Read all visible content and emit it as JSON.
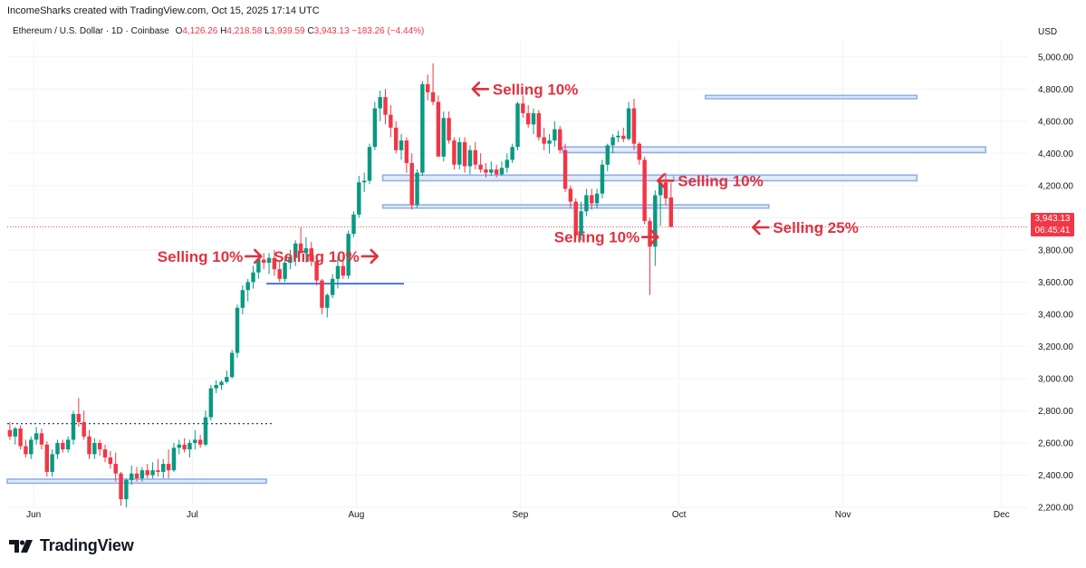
{
  "header": {
    "credit": "IncomeSharks created with TradingView.com, Oct 15, 2025 17:14 UTC",
    "symbol": "Ethereum / U.S. Dollar · 1D · Coinbase",
    "open_label": "O",
    "open": "4,126.26",
    "high_label": "H",
    "high": "4,218.58",
    "low_label": "L",
    "low": "3,939.59",
    "close_label": "C",
    "close": "3,943.13",
    "change": "−183.26 (−4.44%)",
    "currency": "USD"
  },
  "price_tag": {
    "price": "3,943.13",
    "countdown": "06:45:41"
  },
  "brand": {
    "name": "TradingView",
    "icon": "tradingview-logo-icon"
  },
  "colors": {
    "up": "#089981",
    "down": "#f23645",
    "annotation": "#e0323f",
    "zone": "#8fb0e8",
    "support": "#1e4fc4",
    "dotted": "#1e3fa8"
  },
  "chart_data": {
    "type": "candlestick",
    "title": "",
    "xlabel": "",
    "ylabel": "",
    "ylim": [
      2200,
      5100
    ],
    "xlim": [
      "2025-05-27",
      "2025-12-06"
    ],
    "grid": true,
    "y_ticks": [
      2200,
      2400,
      2600,
      2800,
      3000,
      3200,
      3400,
      3600,
      3800,
      4000,
      4200,
      4400,
      4600,
      4800,
      5000
    ],
    "y_tick_labels": [
      "2,200.00",
      "2,400.00",
      "2,600.00",
      "2,800.00",
      "3,000.00",
      "3,200.00",
      "3,400.00",
      "3,600.00",
      "3,800.00",
      "4,000.00",
      "4,200.00",
      "4,400.00",
      "4,600.00",
      "4,800.00",
      "5,000.00"
    ],
    "x_ticks": [
      {
        "date": "2025-06-01",
        "label": "Jun"
      },
      {
        "date": "2025-07-01",
        "label": "Jul"
      },
      {
        "date": "2025-08-01",
        "label": "Aug"
      },
      {
        "date": "2025-09-01",
        "label": "Sep"
      },
      {
        "date": "2025-10-01",
        "label": "Oct"
      },
      {
        "date": "2025-11-01",
        "label": "Nov"
      },
      {
        "date": "2025-12-01",
        "label": "Dec"
      }
    ],
    "start_date": "2025-05-27",
    "candles": [
      [
        2680,
        2730,
        2620,
        2640
      ],
      [
        2640,
        2700,
        2590,
        2690
      ],
      [
        2690,
        2710,
        2560,
        2580
      ],
      [
        2580,
        2620,
        2510,
        2530
      ],
      [
        2530,
        2640,
        2500,
        2620
      ],
      [
        2620,
        2700,
        2590,
        2660
      ],
      [
        2660,
        2690,
        2560,
        2590
      ],
      [
        2590,
        2610,
        2390,
        2420
      ],
      [
        2420,
        2560,
        2390,
        2530
      ],
      [
        2530,
        2620,
        2500,
        2600
      ],
      [
        2600,
        2620,
        2540,
        2560
      ],
      [
        2560,
        2640,
        2540,
        2620
      ],
      [
        2620,
        2800,
        2590,
        2780
      ],
      [
        2780,
        2880,
        2700,
        2730
      ],
      [
        2730,
        2800,
        2620,
        2640
      ],
      [
        2640,
        2680,
        2500,
        2530
      ],
      [
        2530,
        2630,
        2500,
        2600
      ],
      [
        2600,
        2620,
        2520,
        2560
      ],
      [
        2560,
        2590,
        2480,
        2510
      ],
      [
        2510,
        2550,
        2440,
        2470
      ],
      [
        2470,
        2540,
        2360,
        2410
      ],
      [
        2410,
        2420,
        2210,
        2250
      ],
      [
        2250,
        2380,
        2200,
        2370
      ],
      [
        2370,
        2460,
        2340,
        2410
      ],
      [
        2410,
        2450,
        2360,
        2380
      ],
      [
        2380,
        2450,
        2360,
        2430
      ],
      [
        2430,
        2470,
        2380,
        2400
      ],
      [
        2400,
        2480,
        2380,
        2430
      ],
      [
        2430,
        2500,
        2390,
        2420
      ],
      [
        2420,
        2500,
        2380,
        2470
      ],
      [
        2470,
        2560,
        2380,
        2430
      ],
      [
        2430,
        2600,
        2420,
        2570
      ],
      [
        2570,
        2620,
        2530,
        2590
      ],
      [
        2590,
        2630,
        2540,
        2560
      ],
      [
        2560,
        2620,
        2510,
        2600
      ],
      [
        2600,
        2680,
        2560,
        2620
      ],
      [
        2620,
        2650,
        2570,
        2590
      ],
      [
        2590,
        2800,
        2580,
        2760
      ],
      [
        2760,
        2960,
        2740,
        2940
      ],
      [
        2940,
        2990,
        2910,
        2960
      ],
      [
        2960,
        2990,
        2930,
        2980
      ],
      [
        2980,
        3050,
        2970,
        3010
      ],
      [
        3010,
        3180,
        3000,
        3160
      ],
      [
        3160,
        3460,
        3130,
        3440
      ],
      [
        3440,
        3580,
        3400,
        3550
      ],
      [
        3550,
        3620,
        3480,
        3600
      ],
      [
        3600,
        3700,
        3560,
        3660
      ],
      [
        3660,
        3770,
        3620,
        3740
      ],
      [
        3740,
        3780,
        3680,
        3720
      ],
      [
        3720,
        3780,
        3650,
        3750
      ],
      [
        3750,
        3800,
        3640,
        3680
      ],
      [
        3680,
        3730,
        3600,
        3620
      ],
      [
        3620,
        3760,
        3600,
        3720
      ],
      [
        3720,
        3800,
        3680,
        3750
      ],
      [
        3750,
        3860,
        3700,
        3840
      ],
      [
        3840,
        3940,
        3780,
        3780
      ],
      [
        3780,
        3880,
        3720,
        3810
      ],
      [
        3810,
        3850,
        3700,
        3730
      ],
      [
        3730,
        3760,
        3580,
        3610
      ],
      [
        3610,
        3620,
        3400,
        3440
      ],
      [
        3440,
        3530,
        3380,
        3520
      ],
      [
        3520,
        3650,
        3500,
        3620
      ],
      [
        3620,
        3760,
        3560,
        3700
      ],
      [
        3700,
        3780,
        3620,
        3640
      ],
      [
        3640,
        3920,
        3620,
        3900
      ],
      [
        3900,
        4040,
        3880,
        4020
      ],
      [
        4020,
        4260,
        4000,
        4220
      ],
      [
        4220,
        4280,
        4160,
        4230
      ],
      [
        4230,
        4460,
        4210,
        4440
      ],
      [
        4440,
        4720,
        4420,
        4680
      ],
      [
        4680,
        4790,
        4600,
        4750
      ],
      [
        4750,
        4800,
        4580,
        4640
      ],
      [
        4640,
        4700,
        4500,
        4560
      ],
      [
        4560,
        4600,
        4400,
        4420
      ],
      [
        4420,
        4520,
        4360,
        4480
      ],
      [
        4480,
        4500,
        4280,
        4340
      ],
      [
        4340,
        4400,
        4050,
        4080
      ],
      [
        4080,
        4300,
        4060,
        4280
      ],
      [
        4280,
        4850,
        4260,
        4830
      ],
      [
        4830,
        4890,
        4730,
        4780
      ],
      [
        4780,
        4960,
        4700,
        4720
      ],
      [
        4720,
        4760,
        4400,
        4380
      ],
      [
        4380,
        4660,
        4350,
        4620
      ],
      [
        4620,
        4660,
        4460,
        4480
      ],
      [
        4480,
        4500,
        4300,
        4330
      ],
      [
        4330,
        4500,
        4300,
        4470
      ],
      [
        4470,
        4500,
        4280,
        4320
      ],
      [
        4320,
        4450,
        4270,
        4420
      ],
      [
        4420,
        4470,
        4300,
        4330
      ],
      [
        4330,
        4400,
        4280,
        4300
      ],
      [
        4300,
        4340,
        4250,
        4280
      ],
      [
        4280,
        4350,
        4260,
        4300
      ],
      [
        4300,
        4330,
        4250,
        4270
      ],
      [
        4270,
        4350,
        4260,
        4310
      ],
      [
        4310,
        4400,
        4280,
        4360
      ],
      [
        4360,
        4460,
        4340,
        4440
      ],
      [
        4440,
        4720,
        4420,
        4710
      ],
      [
        4710,
        4760,
        4620,
        4650
      ],
      [
        4650,
        4700,
        4560,
        4580
      ],
      [
        4580,
        4680,
        4520,
        4650
      ],
      [
        4650,
        4670,
        4480,
        4500
      ],
      [
        4500,
        4560,
        4420,
        4460
      ],
      [
        4460,
        4520,
        4400,
        4480
      ],
      [
        4480,
        4600,
        4440,
        4550
      ],
      [
        4550,
        4570,
        4400,
        4420
      ],
      [
        4420,
        4460,
        4160,
        4180
      ],
      [
        4180,
        4200,
        4060,
        4100
      ],
      [
        4100,
        4120,
        3870,
        3890
      ],
      [
        3890,
        4100,
        3860,
        4040
      ],
      [
        4040,
        4180,
        4010,
        4140
      ],
      [
        4140,
        4180,
        4050,
        4090
      ],
      [
        4090,
        4180,
        4060,
        4150
      ],
      [
        4150,
        4360,
        4120,
        4330
      ],
      [
        4330,
        4460,
        4290,
        4450
      ],
      [
        4450,
        4520,
        4400,
        4500
      ],
      [
        4500,
        4540,
        4470,
        4510
      ],
      [
        4510,
        4560,
        4470,
        4490
      ],
      [
        4490,
        4720,
        4480,
        4680
      ],
      [
        4680,
        4740,
        4420,
        4460
      ],
      [
        4460,
        4470,
        4330,
        4360
      ],
      [
        4360,
        4380,
        3960,
        3980
      ],
      [
        3980,
        4000,
        3520,
        3820
      ],
      [
        3820,
        4170,
        3700,
        4140
      ],
      [
        4140,
        4220,
        3950,
        4220
      ],
      [
        4220,
        4280,
        4080,
        4120
      ],
      [
        4126.26,
        4218.58,
        3939.59,
        3943.13
      ]
    ],
    "zones": [
      {
        "from": "2025-05-27",
        "to": "2025-07-15",
        "low": 2350,
        "high": 2375
      },
      {
        "from": "2025-08-06",
        "to": "2025-09-30",
        "low": 4230,
        "high": 4265
      },
      {
        "from": "2025-09-30",
        "to": "2025-11-15",
        "low": 4230,
        "high": 4265
      },
      {
        "from": "2025-08-06",
        "to": "2025-10-18",
        "low": 4060,
        "high": 4080
      },
      {
        "from": "2025-09-09",
        "to": "2025-11-28",
        "low": 4405,
        "high": 4440
      },
      {
        "from": "2025-10-06",
        "to": "2025-11-15",
        "low": 4740,
        "high": 4760
      }
    ],
    "support_line": {
      "from": "2025-07-15",
      "to": "2025-08-10",
      "value": 3590
    },
    "dotted_line": {
      "from": "2025-05-27",
      "to": "2025-07-16",
      "value": 2720
    },
    "last_price_line": 3943.13,
    "annotations": [
      {
        "text": "Selling 10%",
        "date": "2025-07-14",
        "price": 3760,
        "arrow": "right"
      },
      {
        "text": "Selling 10%",
        "date": "2025-08-05",
        "price": 3760,
        "arrow": "right"
      },
      {
        "text": "Selling 10%",
        "date": "2025-08-23",
        "price": 4800,
        "arrow": "left"
      },
      {
        "text": "Selling 10%",
        "date": "2025-09-27",
        "price": 4230,
        "arrow": "left"
      },
      {
        "text": "Selling 10%",
        "date": "2025-09-27",
        "price": 3880,
        "arrow": "right"
      },
      {
        "text": "Selling 25%",
        "date": "2025-10-15",
        "price": 3940,
        "arrow": "left"
      }
    ]
  }
}
